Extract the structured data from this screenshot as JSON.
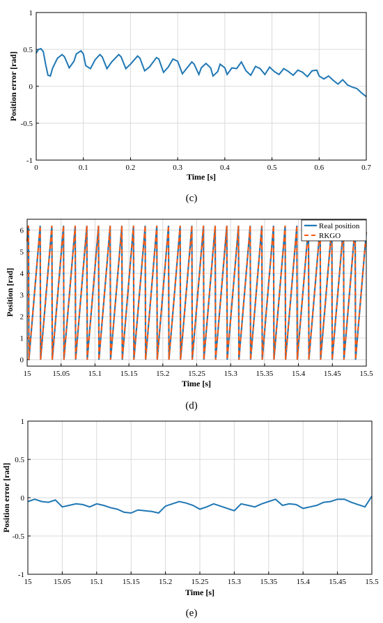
{
  "chart_data": [
    {
      "type": "line",
      "caption": "(c)",
      "xlabel": "Time [s]",
      "ylabel": "Position error [rad]",
      "xlim": [
        0,
        0.7
      ],
      "ylim": [
        -1,
        1
      ],
      "xticks": [
        "0",
        "0.1",
        "0.2",
        "0.3",
        "0.4",
        "0.5",
        "0.6",
        "0.7"
      ],
      "yticks": [
        "-1",
        "-0.5",
        "0",
        "0.5",
        "1"
      ],
      "grid": true,
      "color": "#1f77b4",
      "series": [
        {
          "x": [
            0,
            0.005,
            0.01,
            0.015,
            0.02,
            0.025,
            0.03,
            0.035,
            0.045,
            0.055,
            0.06,
            0.07,
            0.08,
            0.085,
            0.095,
            0.1,
            0.105,
            0.115,
            0.125,
            0.135,
            0.14,
            0.15,
            0.16,
            0.175,
            0.18,
            0.19,
            0.2,
            0.215,
            0.22,
            0.23,
            0.24,
            0.255,
            0.26,
            0.27,
            0.28,
            0.29,
            0.3,
            0.31,
            0.32,
            0.33,
            0.335,
            0.345,
            0.35,
            0.36,
            0.37,
            0.375,
            0.385,
            0.39,
            0.4,
            0.405,
            0.415,
            0.425,
            0.435,
            0.445,
            0.455,
            0.465,
            0.475,
            0.485,
            0.495,
            0.505,
            0.515,
            0.525,
            0.535,
            0.545,
            0.555,
            0.565,
            0.575,
            0.585,
            0.595,
            0.6,
            0.61,
            0.62,
            0.63,
            0.64,
            0.65,
            0.66,
            0.67,
            0.68,
            0.69,
            0.7
          ],
          "y": [
            0.45,
            0.5,
            0.51,
            0.47,
            0.3,
            0.15,
            0.14,
            0.25,
            0.38,
            0.43,
            0.4,
            0.25,
            0.34,
            0.44,
            0.48,
            0.44,
            0.28,
            0.24,
            0.36,
            0.43,
            0.4,
            0.24,
            0.33,
            0.43,
            0.4,
            0.24,
            0.3,
            0.41,
            0.38,
            0.21,
            0.26,
            0.39,
            0.37,
            0.19,
            0.26,
            0.37,
            0.34,
            0.17,
            0.25,
            0.33,
            0.3,
            0.16,
            0.25,
            0.31,
            0.25,
            0.14,
            0.2,
            0.3,
            0.25,
            0.16,
            0.25,
            0.24,
            0.33,
            0.21,
            0.15,
            0.27,
            0.24,
            0.16,
            0.26,
            0.2,
            0.16,
            0.24,
            0.2,
            0.15,
            0.22,
            0.19,
            0.13,
            0.21,
            0.22,
            0.14,
            0.1,
            0.14,
            0.08,
            0.03,
            0.09,
            0.02,
            -0.01,
            -0.03,
            -0.09,
            -0.14
          ]
        }
      ]
    },
    {
      "type": "line",
      "caption": "(d)",
      "xlabel": "Time [s]",
      "ylabel": "Position [rad]",
      "xlim": [
        15,
        15.5
      ],
      "ylim": [
        -0.3,
        6.5
      ],
      "xticks": [
        "15",
        "15.05",
        "15.1",
        "15.15",
        "15.2",
        "15.25",
        "15.3",
        "15.35",
        "15.4",
        "15.45",
        "15.5"
      ],
      "yticks": [
        "0",
        "1",
        "2",
        "3",
        "4",
        "5",
        "6"
      ],
      "yticks_values": [
        0,
        1,
        2,
        3,
        4,
        5,
        6
      ],
      "grid": true,
      "legend_position": "top-right",
      "sawtooth_period": 0.0172,
      "sawtooth_peak": 6.2,
      "series": [
        {
          "name": "Real position",
          "color": "#1f77b4",
          "style": "solid"
        },
        {
          "name": "RKGO",
          "color": "#ff5a10",
          "style": "dashed"
        }
      ]
    },
    {
      "type": "line",
      "caption": "(e)",
      "xlabel": "Time [s]",
      "ylabel": "Position error [rad]",
      "xlim": [
        15,
        15.5
      ],
      "ylim": [
        -1,
        1
      ],
      "xticks": [
        "15",
        "15.05",
        "15.1",
        "15.15",
        "15.2",
        "15.25",
        "15.3",
        "15.35",
        "15.4",
        "15.45",
        "15.5"
      ],
      "yticks": [
        "-1",
        "-0.5",
        "0",
        "0.5",
        "1"
      ],
      "grid": true,
      "color": "#1f77b4",
      "series": [
        {
          "x": [
            15,
            15.01,
            15.02,
            15.03,
            15.04,
            15.05,
            15.06,
            15.07,
            15.08,
            15.09,
            15.1,
            15.11,
            15.12,
            15.13,
            15.14,
            15.15,
            15.16,
            15.17,
            15.18,
            15.19,
            15.2,
            15.21,
            15.22,
            15.23,
            15.24,
            15.25,
            15.26,
            15.27,
            15.28,
            15.29,
            15.3,
            15.31,
            15.32,
            15.33,
            15.34,
            15.35,
            15.36,
            15.37,
            15.38,
            15.39,
            15.4,
            15.41,
            15.42,
            15.43,
            15.44,
            15.45,
            15.46,
            15.47,
            15.48,
            15.49,
            15.5
          ],
          "y": [
            -0.05,
            -0.02,
            -0.05,
            -0.06,
            -0.03,
            -0.12,
            -0.1,
            -0.08,
            -0.09,
            -0.12,
            -0.08,
            -0.1,
            -0.13,
            -0.15,
            -0.19,
            -0.2,
            -0.16,
            -0.17,
            -0.18,
            -0.2,
            -0.11,
            -0.08,
            -0.05,
            -0.07,
            -0.1,
            -0.15,
            -0.12,
            -0.08,
            -0.11,
            -0.14,
            -0.17,
            -0.08,
            -0.1,
            -0.12,
            -0.08,
            -0.05,
            -0.02,
            -0.1,
            -0.08,
            -0.09,
            -0.14,
            -0.12,
            -0.1,
            -0.06,
            -0.05,
            -0.02,
            -0.02,
            -0.06,
            -0.09,
            -0.12,
            0.02
          ]
        }
      ]
    }
  ]
}
